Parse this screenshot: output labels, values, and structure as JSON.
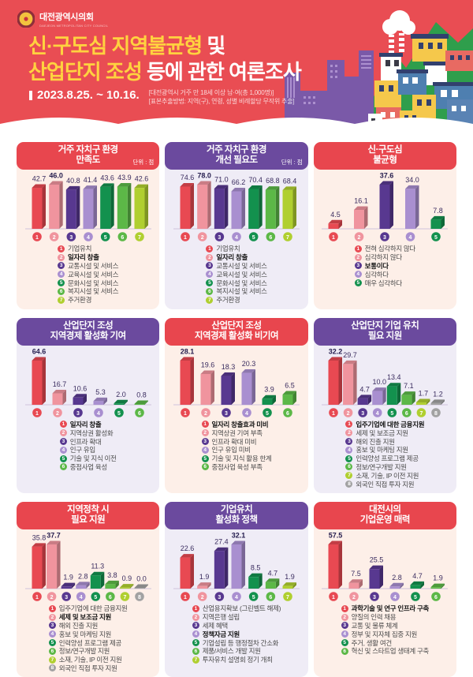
{
  "header": {
    "org_name": "대전광역시의회",
    "org_name_en": "DAEJEON METROPOLITAN CITY COUNCIL",
    "title_line1_highlight": "신·구도심 지역불균형",
    "title_line1_rest": " 및",
    "title_line2_highlight": "산업단지 조성",
    "title_line2_rest": " 등에 관한 여론조사",
    "survey_period": "2023.8.25. ~ 10.16.",
    "note_line1": "[대전광역시 거주 만 18세 이상 남·여(총 1,000명)]",
    "note_line2": "[표본추출방법: 지역(구), 연령, 성별 비례할당 무작위 추출]"
  },
  "colors": {
    "hero_red": "#e94d53",
    "title_yellow": "#ffd23f",
    "panel_header_red": "#e8464e",
    "panel_header_purple": "#6b4a9e",
    "panel_body_pink": "#fdefe8",
    "panel_body_lavender": "#efecf6",
    "baseline": "#cfc3dc",
    "value_label": "#3a2c5f",
    "value_label_max": "#241d4e",
    "series_palette": [
      "#e84952",
      "#f0949e",
      "#583890",
      "#a98fd0",
      "#13914e",
      "#5cb847",
      "#b0cf30",
      "#a2a2a2"
    ]
  },
  "chart_data": [
    {
      "type": "bar",
      "theme": "red",
      "title_line1": "거주 자치구 환경",
      "title_line2": "만족도",
      "unit": "단위 : 점",
      "categories": [
        "기업유치",
        "일자리 창출",
        "교통시설 및 서비스",
        "교육시설 및 서비스",
        "문화시설 및 서비스",
        "복지시설 및 서비스",
        "주거환경"
      ],
      "values": [
        42.7,
        46.0,
        40.8,
        41.4,
        43.6,
        43.9,
        42.6
      ]
    },
    {
      "type": "bar",
      "theme": "purple",
      "title_line1": "거주 자치구 환경",
      "title_line2": "개선 필요도",
      "unit": "단위 : 점",
      "categories": [
        "기업유치",
        "일자리 창출",
        "교통시설 및 서비스",
        "교육시설 및 서비스",
        "문화시설 및 서비스",
        "복지시설 및 서비스",
        "주거환경"
      ],
      "values": [
        74.6,
        78.0,
        71.0,
        66.2,
        70.4,
        68.8,
        68.4
      ]
    },
    {
      "type": "bar",
      "theme": "red",
      "title_line1": "신·구도심",
      "title_line2": "불균형",
      "unit": "",
      "categories": [
        "전혀 심각하지 않다",
        "심각하지 않다",
        "보통이다",
        "심각하다",
        "매우 심각하다"
      ],
      "values": [
        4.5,
        16.1,
        37.6,
        34.0,
        7.8
      ]
    },
    {
      "type": "bar",
      "theme": "purple",
      "title_line1": "산업단지 조성",
      "title_line2": "지역경제 활성화 기여",
      "unit": "",
      "categories": [
        "일자리 창출",
        "지역상권 활성화",
        "인프라 확대",
        "인구 유입",
        "기술 및 지식 이전",
        "중점사업 육성"
      ],
      "values": [
        64.6,
        16.7,
        10.6,
        5.3,
        2.0,
        0.8
      ]
    },
    {
      "type": "bar",
      "theme": "red",
      "title_line1": "산업단지 조성",
      "title_line2": "지역경제 활성화 비기여",
      "unit": "",
      "categories": [
        "일자리 창출효과 미비",
        "지역상권 기여 부족",
        "인프라 확대 미비",
        "인구 유입 미비",
        "기술 및 지식 활용 한계",
        "중점사업 육성 부족"
      ],
      "values": [
        28.1,
        19.6,
        18.3,
        20.3,
        3.9,
        6.5
      ]
    },
    {
      "type": "bar",
      "theme": "purple",
      "title_line1": "산업단지 기업 유치",
      "title_line2": "필요 지원",
      "unit": "",
      "categories": [
        "입주기업에 대한 금융지원",
        "세제 및 보조금 지원",
        "해외 진출 지원",
        "홍보 및 마케팅 지원",
        "인력양성 프로그램 제공",
        "정보/연구개발 지원",
        "소재, 기술, IP 이전 지원",
        "외국인 직접 투자 지원"
      ],
      "values": [
        32.2,
        29.7,
        4.7,
        10.0,
        13.4,
        7.1,
        1.7,
        1.2
      ]
    },
    {
      "type": "bar",
      "theme": "red",
      "title_line1": "지역정착 시",
      "title_line2": "필요 지원",
      "unit": "",
      "categories": [
        "입주기업에 대한 금융지원",
        "세제 및 보조금 지원",
        "해외 진출 지원",
        "홍보 및 마케팅 지원",
        "인력양성 프로그램 제공",
        "정보/연구개발 지원",
        "소재, 기술, IP 이전 지원",
        "외국인 직접 투자 지원"
      ],
      "values": [
        35.8,
        37.7,
        1.9,
        2.8,
        11.3,
        3.8,
        0.9,
        0.0
      ]
    },
    {
      "type": "bar",
      "theme": "purple",
      "title_line1": "기업유치",
      "title_line2": "활성화 정책",
      "unit": "",
      "categories": [
        "산업용지확보 (그린벨트 해제)",
        "지역은행 설립",
        "세제 혜택",
        "정책자금 지원",
        "기업설립 등 행정절차 간소화",
        "제품/서비스 개발 지원",
        "투자유치 설명회 정기 개최"
      ],
      "values": [
        22.6,
        1.9,
        27.4,
        32.1,
        8.5,
        4.7,
        1.9
      ]
    },
    {
      "type": "bar",
      "theme": "red",
      "title_line1": "대전시의",
      "title_line2": "기업운영 매력",
      "unit": "",
      "categories": [
        "과학기술 및 연구 인프라 구축",
        "양질의 인력 채용",
        "교통 및 물류 체계",
        "정부 및 지자체 집중 지원",
        "주거, 생활 여건",
        "혁신 및 스타트업 생태계 구축"
      ],
      "values": [
        57.5,
        7.5,
        25.5,
        2.8,
        4.7,
        1.9
      ]
    }
  ]
}
